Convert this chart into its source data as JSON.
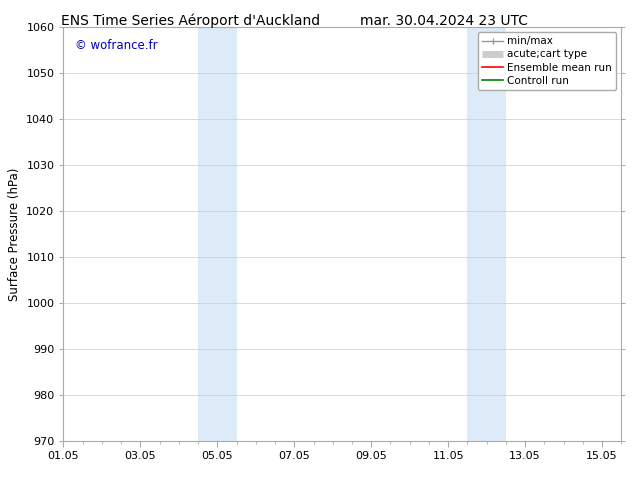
{
  "title_left": "ENS Time Series Aéroport d'Auckland",
  "title_right": "mar. 30.04.2024 23 UTC",
  "ylabel": "Surface Pressure (hPa)",
  "ylim": [
    970,
    1060
  ],
  "yticks": [
    970,
    980,
    990,
    1000,
    1010,
    1020,
    1030,
    1040,
    1050,
    1060
  ],
  "xlim": [
    1.0,
    15.5
  ],
  "xticks": [
    1.0,
    3.0,
    5.0,
    7.0,
    9.0,
    11.0,
    13.0,
    15.0
  ],
  "xticklabels": [
    "01.05",
    "03.05",
    "05.05",
    "07.05",
    "09.05",
    "11.05",
    "13.05",
    "15.05"
  ],
  "watermark": "© wofrance.fr",
  "watermark_color": "#0000cc",
  "bg_color": "#ffffff",
  "plot_bg_color": "#ffffff",
  "shaded_bands": [
    {
      "xmin": 4.5,
      "xmax": 5.0,
      "color": "#ddeaf7"
    },
    {
      "xmin": 5.0,
      "xmax": 5.5,
      "color": "#ddeaf7"
    },
    {
      "xmin": 11.5,
      "xmax": 12.0,
      "color": "#ddeaf7"
    },
    {
      "xmin": 12.0,
      "xmax": 12.5,
      "color": "#ddeaf7"
    }
  ],
  "legend_entries": [
    {
      "label": "min/max",
      "color": "#999999",
      "lw": 1.0,
      "style": "line_with_caps"
    },
    {
      "label": "acute;cart type",
      "color": "#cccccc",
      "lw": 5,
      "style": "thick_line"
    },
    {
      "label": "Ensemble mean run",
      "color": "#ff0000",
      "lw": 1.2,
      "style": "line"
    },
    {
      "label": "Controll run",
      "color": "#008000",
      "lw": 1.2,
      "style": "line"
    }
  ],
  "grid_color": "#cccccc",
  "grid_lw": 0.5,
  "title_fontsize": 10,
  "tick_fontsize": 8,
  "legend_fontsize": 7.5,
  "ylabel_fontsize": 8.5,
  "spine_color": "#aaaaaa"
}
